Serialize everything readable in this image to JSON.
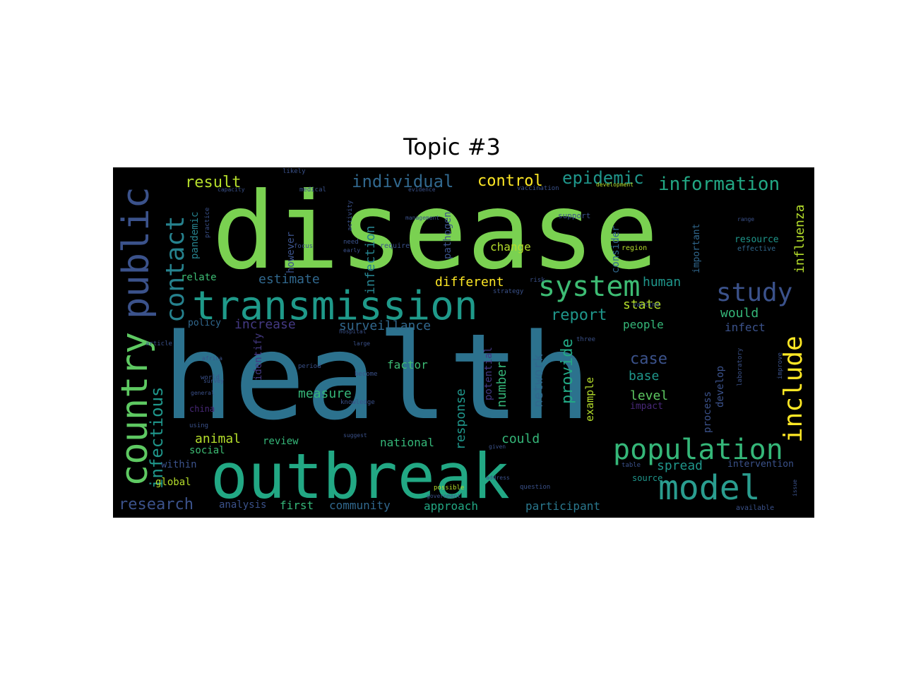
{
  "figure": {
    "title": "Topic #3"
  },
  "chart_data": {
    "type": "wordcloud",
    "title": "Topic #3",
    "background": "#000000",
    "colormap": "viridis",
    "words": [
      {
        "text": "health",
        "weight": 1.0,
        "color": "#2c728e"
      },
      {
        "text": "disease",
        "weight": 0.92,
        "color": "#7ad151"
      },
      {
        "text": "outbreak",
        "weight": 0.62,
        "color": "#22a884"
      },
      {
        "text": "transmission",
        "weight": 0.45,
        "color": "#1f9a8a"
      },
      {
        "text": "population",
        "weight": 0.36,
        "color": "#35b779"
      },
      {
        "text": "model",
        "weight": 0.36,
        "color": "#2a9d8f"
      },
      {
        "text": "public",
        "weight": 0.4,
        "color": "#3b528b"
      },
      {
        "text": "country",
        "weight": 0.38,
        "color": "#5ec962"
      },
      {
        "text": "system",
        "weight": 0.3,
        "color": "#3dbc74"
      },
      {
        "text": "study",
        "weight": 0.26,
        "color": "#3b528b"
      },
      {
        "text": "contact",
        "weight": 0.24,
        "color": "#26828e"
      },
      {
        "text": "include",
        "weight": 0.24,
        "color": "#fde725"
      },
      {
        "text": "infectious",
        "weight": 0.2,
        "color": "#1f968b"
      },
      {
        "text": "information",
        "weight": 0.18,
        "color": "#22a884"
      },
      {
        "text": "epidemic",
        "weight": 0.16,
        "color": "#1f968b"
      },
      {
        "text": "individual",
        "weight": 0.16,
        "color": "#31688e"
      },
      {
        "text": "control",
        "weight": 0.14,
        "color": "#fde725"
      },
      {
        "text": "result",
        "weight": 0.14,
        "color": "#b5de2b"
      },
      {
        "text": "research",
        "weight": 0.14,
        "color": "#3b528b"
      },
      {
        "text": "report",
        "weight": 0.14,
        "color": "#1f968b"
      },
      {
        "text": "influenza",
        "weight": 0.13,
        "color": "#b5de2b"
      },
      {
        "text": "case",
        "weight": 0.14,
        "color": "#3b528b"
      },
      {
        "text": "provide",
        "weight": 0.13,
        "color": "#22a884"
      },
      {
        "text": "estimate",
        "weight": 0.12,
        "color": "#31688e"
      },
      {
        "text": "increase",
        "weight": 0.12,
        "color": "#443983"
      },
      {
        "text": "surveillance",
        "weight": 0.12,
        "color": "#31688e"
      },
      {
        "text": "infection",
        "weight": 0.13,
        "color": "#26828e"
      },
      {
        "text": "human",
        "weight": 0.12,
        "color": "#1f968b"
      },
      {
        "text": "state",
        "weight": 0.12,
        "color": "#b5de2b"
      },
      {
        "text": "would",
        "weight": 0.12,
        "color": "#35b779"
      },
      {
        "text": "spread",
        "weight": 0.12,
        "color": "#1f968b"
      },
      {
        "text": "measure",
        "weight": 0.12,
        "color": "#35b779"
      },
      {
        "text": "different",
        "weight": 0.11,
        "color": "#fde725"
      },
      {
        "text": "animal",
        "weight": 0.12,
        "color": "#b5de2b"
      },
      {
        "text": "could",
        "weight": 0.12,
        "color": "#35b779"
      },
      {
        "text": "network",
        "weight": 0.11,
        "color": "#31688e"
      },
      {
        "text": "number",
        "weight": 0.12,
        "color": "#35b779"
      },
      {
        "text": "response",
        "weight": 0.11,
        "color": "#1f968b"
      },
      {
        "text": "level",
        "weight": 0.11,
        "color": "#5ec962"
      },
      {
        "text": "base",
        "weight": 0.11,
        "color": "#1f968b"
      },
      {
        "text": "people",
        "weight": 0.1,
        "color": "#35b779"
      },
      {
        "text": "infect",
        "weight": 0.1,
        "color": "#3b528b"
      },
      {
        "text": "factor",
        "weight": 0.11,
        "color": "#3dbc74"
      },
      {
        "text": "change",
        "weight": 0.1,
        "color": "#b5de2b"
      },
      {
        "text": "national",
        "weight": 0.1,
        "color": "#35b779"
      },
      {
        "text": "approach",
        "weight": 0.1,
        "color": "#22a884"
      },
      {
        "text": "participant",
        "weight": 0.1,
        "color": "#2a788e"
      },
      {
        "text": "community",
        "weight": 0.1,
        "color": "#31688e"
      },
      {
        "text": "first",
        "weight": 0.1,
        "color": "#35b779"
      },
      {
        "text": "analysis",
        "weight": 0.08,
        "color": "#3b528b"
      },
      {
        "text": "global",
        "weight": 0.09,
        "color": "#b5de2b"
      },
      {
        "text": "within",
        "weight": 0.08,
        "color": "#3b528b"
      },
      {
        "text": "social",
        "weight": 0.08,
        "color": "#3dbc74"
      },
      {
        "text": "review",
        "weight": 0.09,
        "color": "#35b779"
      },
      {
        "text": "pandemic",
        "weight": 0.09,
        "color": "#26828e"
      },
      {
        "text": "relate",
        "weight": 0.08,
        "color": "#3dbc74"
      },
      {
        "text": "policy",
        "weight": 0.07,
        "color": "#31688e"
      },
      {
        "text": "identify",
        "weight": 0.09,
        "color": "#443983"
      },
      {
        "text": "however",
        "weight": 0.09,
        "color": "#3b528b"
      },
      {
        "text": "pathogen",
        "weight": 0.08,
        "color": "#3b528b"
      },
      {
        "text": "potential",
        "weight": 0.08,
        "color": "#443983"
      },
      {
        "text": "example",
        "weight": 0.09,
        "color": "#b5de2b"
      },
      {
        "text": "develop",
        "weight": 0.09,
        "color": "#3b528b"
      },
      {
        "text": "process",
        "weight": 0.09,
        "color": "#3b528b"
      },
      {
        "text": "impact",
        "weight": 0.08,
        "color": "#482878"
      },
      {
        "text": "source",
        "weight": 0.07,
        "color": "#1f968b"
      },
      {
        "text": "intervention",
        "weight": 0.08,
        "color": "#3b528b"
      },
      {
        "text": "resource",
        "weight": 0.07,
        "color": "#1f968b"
      },
      {
        "text": "important",
        "weight": 0.08,
        "color": "#31688e"
      },
      {
        "text": "consider",
        "weight": 0.08,
        "color": "#31688e"
      },
      {
        "text": "china",
        "weight": 0.07,
        "color": "#482878"
      },
      {
        "text": "region",
        "weight": 0.06,
        "color": "#b5de2b"
      },
      {
        "text": "effective",
        "weight": 0.05,
        "color": "#31688e"
      },
      {
        "text": "support",
        "weight": 0.05,
        "color": "#3b528b"
      },
      {
        "text": "vaccine",
        "weight": 0.05,
        "color": "#3b528b"
      },
      {
        "text": "vaccination",
        "weight": 0.05,
        "color": "#3b528b"
      },
      {
        "text": "strategy",
        "weight": 0.05,
        "color": "#3b528b"
      },
      {
        "text": "require",
        "weight": 0.05,
        "color": "#3b528b"
      },
      {
        "text": "period",
        "weight": 0.05,
        "color": "#3b528b"
      },
      {
        "text": "become",
        "weight": 0.05,
        "color": "#3b528b"
      },
      {
        "text": "given",
        "weight": 0.04,
        "color": "#3b528b"
      },
      {
        "text": "using",
        "weight": 0.04,
        "color": "#3b528b"
      },
      {
        "text": "world",
        "weight": 0.04,
        "color": "#3b528b"
      },
      {
        "text": "survey",
        "weight": 0.04,
        "color": "#3b528b"
      },
      {
        "text": "general",
        "weight": 0.04,
        "color": "#3b528b"
      },
      {
        "text": "hospital",
        "weight": 0.04,
        "color": "#3b528b"
      },
      {
        "text": "large",
        "weight": 0.04,
        "color": "#3b528b"
      },
      {
        "text": "question",
        "weight": 0.04,
        "color": "#3b528b"
      },
      {
        "text": "possible",
        "weight": 0.04,
        "color": "#b5de2b"
      },
      {
        "text": "likely",
        "weight": 0.04,
        "color": "#3b528b"
      },
      {
        "text": "medical",
        "weight": 0.04,
        "color": "#3b528b"
      },
      {
        "text": "activity",
        "weight": 0.04,
        "color": "#3b528b"
      },
      {
        "text": "focus",
        "weight": 0.04,
        "color": "#3b528b"
      },
      {
        "text": "management",
        "weight": 0.04,
        "color": "#3b528b"
      },
      {
        "text": "practice",
        "weight": 0.04,
        "color": "#3b528b"
      },
      {
        "text": "development",
        "weight": 0.04,
        "color": "#b5de2b"
      },
      {
        "text": "three",
        "weight": 0.04,
        "color": "#3b528b"
      },
      {
        "text": "article",
        "weight": 0.04,
        "color": "#3b528b"
      },
      {
        "text": "improve",
        "weight": 0.04,
        "color": "#3b528b"
      },
      {
        "text": "available",
        "weight": 0.04,
        "color": "#3b528b"
      },
      {
        "text": "knowledge",
        "weight": 0.04,
        "color": "#3b528b"
      },
      {
        "text": "laboratory",
        "weight": 0.04,
        "color": "#3b528b"
      },
      {
        "text": "risk",
        "weight": 0.04,
        "color": "#3b528b"
      },
      {
        "text": "need",
        "weight": 0.04,
        "color": "#3b528b"
      },
      {
        "text": "early",
        "weight": 0.04,
        "color": "#3b528b"
      },
      {
        "text": "range",
        "weight": 0.04,
        "color": "#3b528b"
      },
      {
        "text": "address",
        "weight": 0.04,
        "color": "#3b528b"
      },
      {
        "text": "government",
        "weight": 0.04,
        "color": "#3b528b"
      },
      {
        "text": "africa",
        "weight": 0.04,
        "color": "#3b528b"
      },
      {
        "text": "capacity",
        "weight": 0.04,
        "color": "#3b528b"
      },
      {
        "text": "evidence",
        "weight": 0.04,
        "color": "#3b528b"
      },
      {
        "text": "table",
        "weight": 0.04,
        "color": "#3b528b"
      },
      {
        "text": "suggest",
        "weight": 0.04,
        "color": "#3b528b"
      },
      {
        "text": "issue",
        "weight": 0.04,
        "color": "#3b528b"
      }
    ]
  }
}
